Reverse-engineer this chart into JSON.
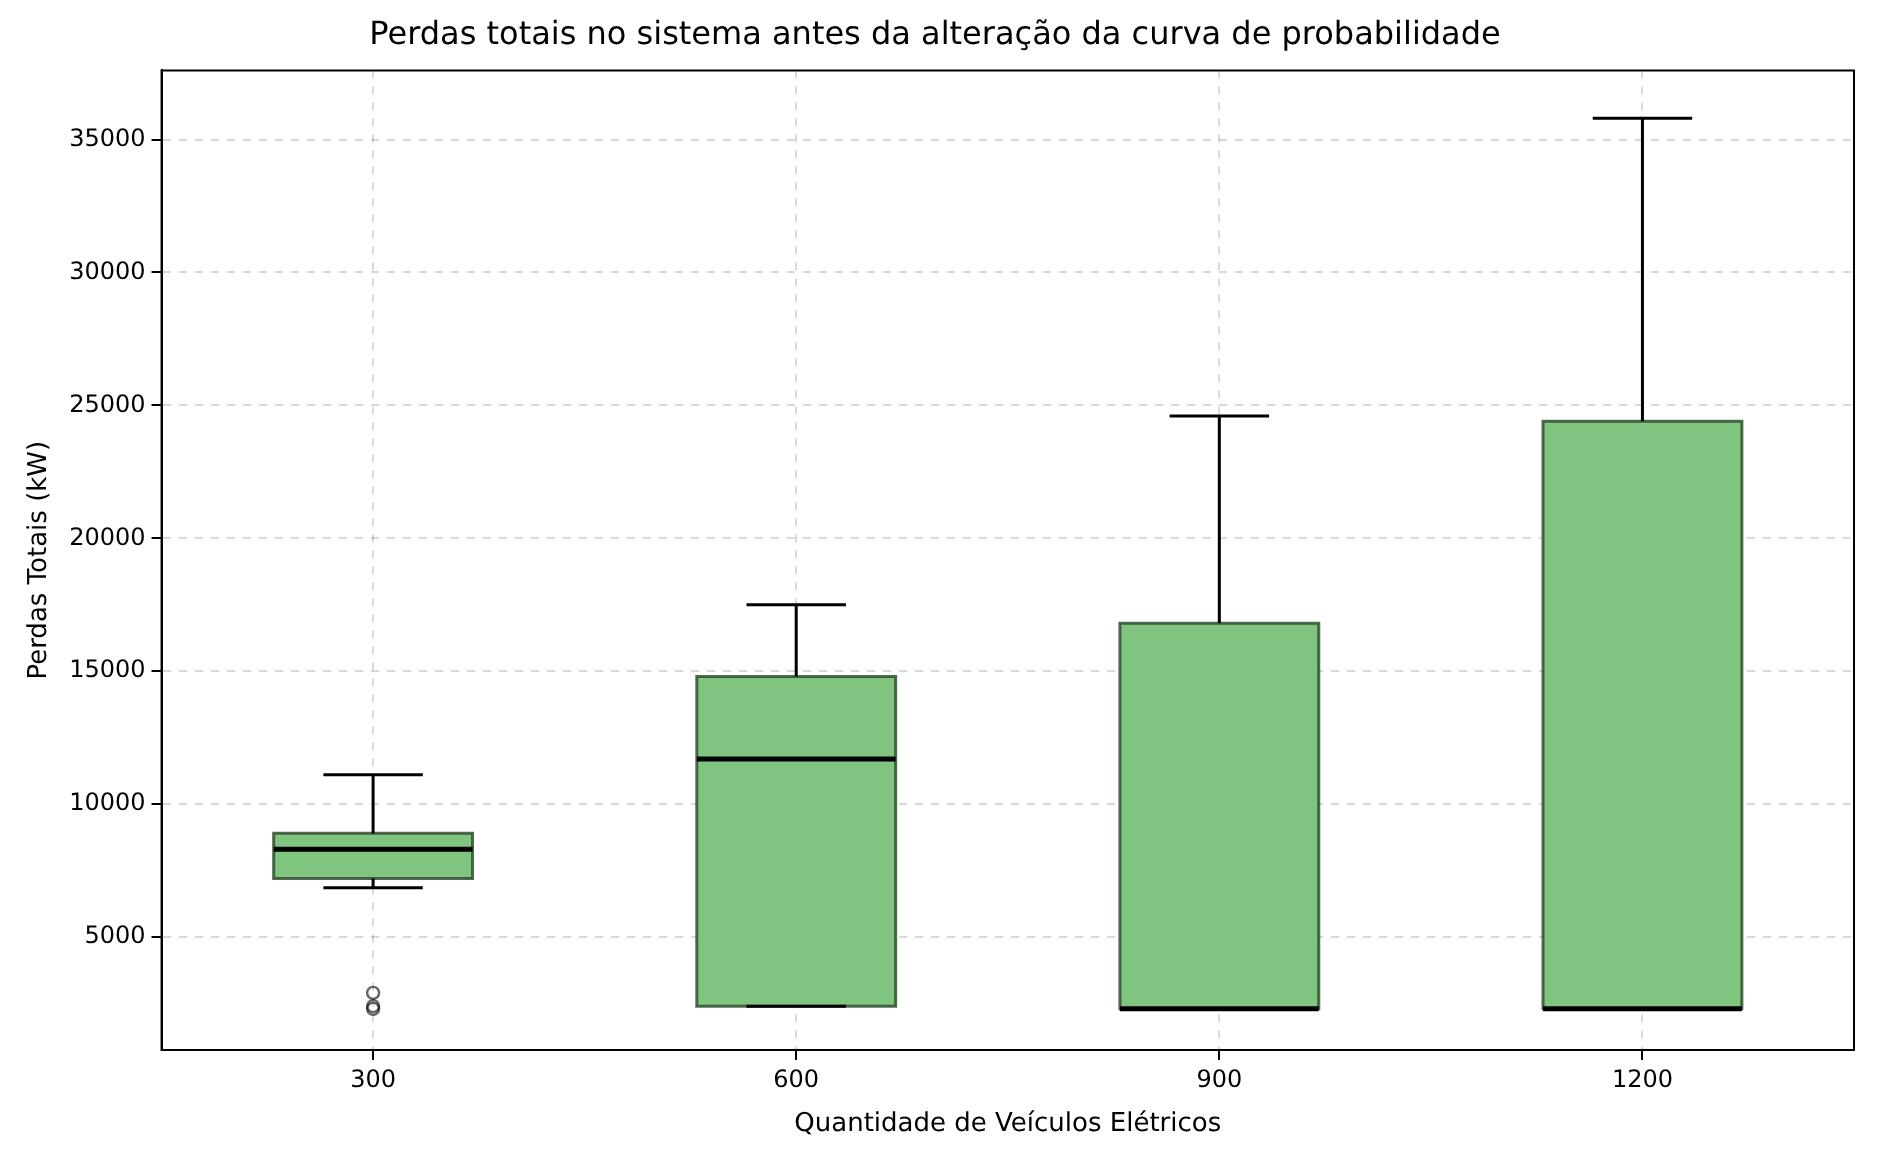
{
  "chart_data": {
    "type": "box",
    "title": "Perdas totais no sistema antes da alteração da curva de probabilidade",
    "xlabel": "Quantidade de Veículos Elétricos",
    "ylabel": "Perdas Totais (kW)",
    "categories": [
      "300",
      "600",
      "900",
      "1200"
    ],
    "color": "#7fc47f",
    "boxes": [
      {
        "low": 6850,
        "q1": 7200,
        "median": 8300,
        "q3": 8900,
        "high": 11100,
        "outliers": [
          2900,
          2400,
          2300
        ]
      },
      {
        "low": 2400,
        "q1": 2400,
        "median": 11700,
        "q3": 14800,
        "high": 17500
      },
      {
        "low": 2300,
        "q1": 2300,
        "median": 2300,
        "q3": 16800,
        "high": 24600
      },
      {
        "low": 2300,
        "q1": 2300,
        "median": 2300,
        "q3": 24400,
        "high": 35800
      }
    ],
    "ylim": [
      750,
      37600
    ],
    "yticks": [
      5000,
      10000,
      15000,
      20000,
      25000,
      30000,
      35000
    ],
    "grid": true
  }
}
